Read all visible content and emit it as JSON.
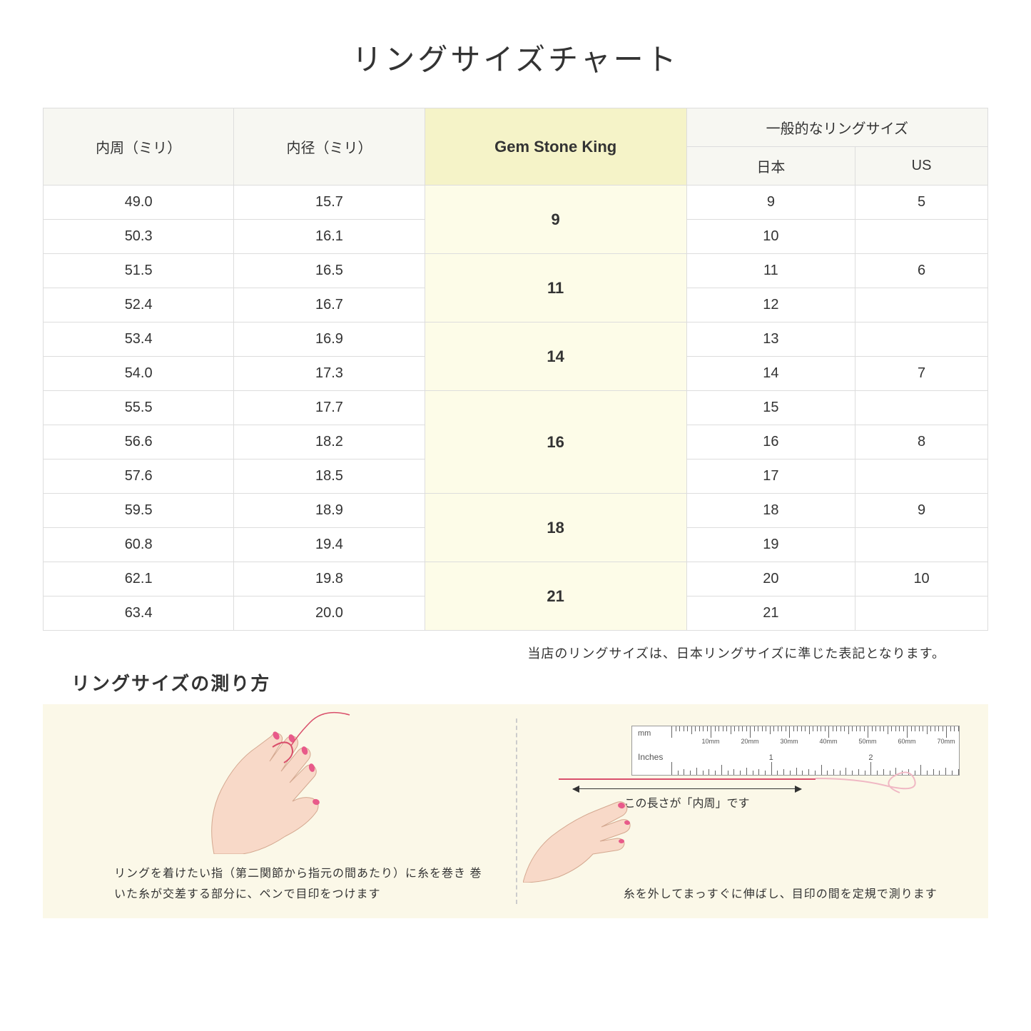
{
  "title": "リングサイズチャート",
  "headers": {
    "circumference": "内周（ミリ）",
    "diameter": "内径（ミリ）",
    "gsk": "Gem Stone King",
    "general": "一般的なリングサイズ",
    "japan": "日本",
    "us": "US"
  },
  "groups": [
    {
      "gsk": "9",
      "rows": [
        {
          "c": "49.0",
          "d": "15.7",
          "jp": "9",
          "us": "5"
        },
        {
          "c": "50.3",
          "d": "16.1",
          "jp": "10",
          "us": ""
        }
      ]
    },
    {
      "gsk": "11",
      "rows": [
        {
          "c": "51.5",
          "d": "16.5",
          "jp": "11",
          "us": "6"
        },
        {
          "c": "52.4",
          "d": "16.7",
          "jp": "12",
          "us": ""
        }
      ]
    },
    {
      "gsk": "14",
      "rows": [
        {
          "c": "53.4",
          "d": "16.9",
          "jp": "13",
          "us": ""
        },
        {
          "c": "54.0",
          "d": "17.3",
          "jp": "14",
          "us": "7"
        }
      ]
    },
    {
      "gsk": "16",
      "rows": [
        {
          "c": "55.5",
          "d": "17.7",
          "jp": "15",
          "us": ""
        },
        {
          "c": "56.6",
          "d": "18.2",
          "jp": "16",
          "us": "8"
        },
        {
          "c": "57.6",
          "d": "18.5",
          "jp": "17",
          "us": ""
        }
      ]
    },
    {
      "gsk": "18",
      "rows": [
        {
          "c": "59.5",
          "d": "18.9",
          "jp": "18",
          "us": "9"
        },
        {
          "c": "60.8",
          "d": "19.4",
          "jp": "19",
          "us": ""
        }
      ]
    },
    {
      "gsk": "21",
      "rows": [
        {
          "c": "62.1",
          "d": "19.8",
          "jp": "20",
          "us": "10"
        },
        {
          "c": "63.4",
          "d": "20.0",
          "jp": "21",
          "us": ""
        }
      ]
    }
  ],
  "note": "当店のリングサイズは、日本リングサイズに準じた表記となります。",
  "howto": {
    "title": "リングサイズの測り方",
    "left_caption": "リングを着けたい指（第二関節から指元の間あたり）に糸を巻き\n巻いた糸が交差する部分に、ペンで目印をつけます",
    "right_caption": "糸を外してまっすぐに伸ばし、目印の間を定規で測ります",
    "measure_label": "この長さが「内周」です",
    "ruler": {
      "mm_label": "mm",
      "in_label": "Inches",
      "mm_ticks": [
        "10mm",
        "20mm",
        "30mm",
        "40mm",
        "50mm",
        "60mm",
        "70mm"
      ],
      "in_ticks": [
        "1",
        "2"
      ]
    }
  },
  "colors": {
    "header_bg": "#f7f7f2",
    "gsk_header_bg": "#f5f3c8",
    "gsk_cell_bg": "#fdfce8",
    "border": "#dddddd",
    "howto_bg": "#fbf8e8",
    "skin": "#f8d9c8",
    "nail": "#e85a8a",
    "thread": "#d94f6b"
  }
}
